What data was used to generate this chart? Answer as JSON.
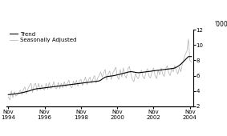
{
  "ylabel_right": "'000",
  "ylim": [
    2,
    12
  ],
  "yticks": [
    2,
    4,
    6,
    8,
    10,
    12
  ],
  "xtick_labels": [
    "Nov\n1994",
    "Nov\n1996",
    "Nov\n1998",
    "Nov\n2000",
    "Nov\n2002",
    "Nov\n2004"
  ],
  "xtick_positions": [
    0,
    24,
    48,
    72,
    96,
    120
  ],
  "legend_entries": [
    "Trend",
    "Seasonally Adjusted"
  ],
  "trend_color": "#000000",
  "seasonal_color": "#b0b0b0",
  "trend_linewidth": 0.8,
  "seasonal_linewidth": 0.5,
  "background_color": "#ffffff",
  "trend_data": [
    3.5,
    3.52,
    3.55,
    3.57,
    3.6,
    3.62,
    3.65,
    3.68,
    3.72,
    3.76,
    3.8,
    3.85,
    3.9,
    3.95,
    4.0,
    4.08,
    4.15,
    4.2,
    4.25,
    4.28,
    4.3,
    4.32,
    4.35,
    4.37,
    4.4,
    4.42,
    4.45,
    4.47,
    4.5,
    4.52,
    4.55,
    4.57,
    4.6,
    4.62,
    4.65,
    4.67,
    4.7,
    4.72,
    4.75,
    4.77,
    4.8,
    4.82,
    4.85,
    4.87,
    4.9,
    4.92,
    4.95,
    4.97,
    5.0,
    5.02,
    5.05,
    5.08,
    5.1,
    5.13,
    5.15,
    5.18,
    5.2,
    5.23,
    5.25,
    5.28,
    5.3,
    5.4,
    5.55,
    5.68,
    5.8,
    5.85,
    5.9,
    5.92,
    5.95,
    5.97,
    6.0,
    6.05,
    6.1,
    6.15,
    6.2,
    6.25,
    6.3,
    6.35,
    6.4,
    6.45,
    6.5,
    6.52,
    6.5,
    6.47,
    6.43,
    6.4,
    6.38,
    6.4,
    6.42,
    6.45,
    6.47,
    6.5,
    6.52,
    6.55,
    6.57,
    6.6,
    6.63,
    6.65,
    6.68,
    6.7,
    6.72,
    6.75,
    6.78,
    6.8,
    6.83,
    6.85,
    6.88,
    6.9,
    6.93,
    6.95,
    7.0,
    7.1,
    7.2,
    7.35,
    7.5,
    7.7,
    7.9,
    8.1,
    8.3,
    8.5,
    8.5,
    8.5
  ],
  "seasonal_data": [
    3.2,
    2.8,
    4.0,
    3.1,
    3.9,
    3.3,
    3.5,
    3.8,
    4.1,
    3.5,
    4.2,
    4.5,
    3.6,
    4.3,
    4.7,
    5.0,
    3.8,
    4.8,
    5.0,
    4.0,
    5.0,
    4.1,
    4.8,
    4.3,
    4.1,
    5.0,
    4.2,
    5.1,
    4.3,
    4.5,
    5.2,
    4.4,
    4.3,
    5.1,
    4.3,
    5.0,
    4.4,
    5.2,
    4.5,
    5.0,
    5.4,
    4.6,
    4.4,
    5.3,
    4.7,
    5.4,
    4.6,
    5.3,
    5.5,
    4.7,
    5.3,
    5.8,
    4.8,
    5.5,
    5.8,
    5.0,
    5.6,
    6.0,
    5.0,
    5.7,
    6.0,
    6.5,
    5.8,
    6.4,
    6.8,
    5.4,
    6.2,
    6.6,
    5.5,
    6.3,
    6.7,
    7.1,
    5.9,
    5.5,
    6.8,
    5.8,
    7.0,
    6.0,
    5.7,
    6.9,
    7.2,
    6.2,
    5.5,
    5.2,
    6.3,
    5.8,
    5.6,
    6.4,
    6.7,
    5.8,
    5.6,
    6.5,
    6.9,
    5.9,
    5.7,
    6.6,
    7.0,
    6.0,
    5.6,
    6.7,
    6.1,
    7.0,
    6.2,
    5.9,
    6.9,
    7.3,
    6.3,
    6.0,
    7.0,
    6.5,
    7.3,
    6.7,
    6.2,
    7.1,
    6.5,
    7.5,
    8.2,
    8.8,
    9.2,
    10.8,
    8.0,
    7.8
  ]
}
